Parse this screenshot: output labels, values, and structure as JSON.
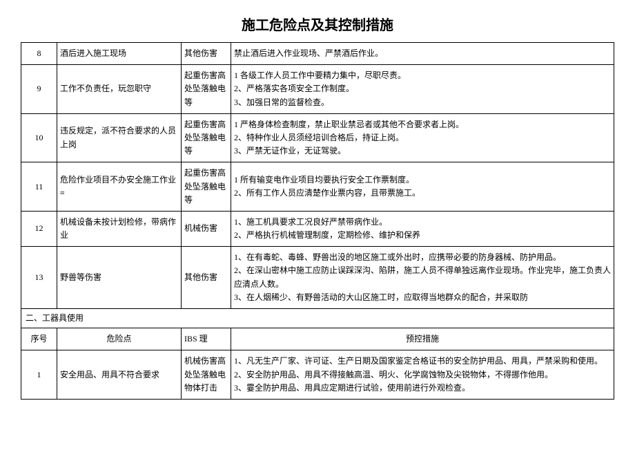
{
  "title": "施工危险点及其控制措施",
  "columns": {
    "seq": "序号",
    "risk": "危险点",
    "type": "IBS 理",
    "measure": "预控措施"
  },
  "section1": {
    "rows": [
      {
        "seq": "8",
        "risk": "酒后进入施工现场",
        "type": "其他伤害",
        "measure": "禁止酒后进入作业现场、严禁酒后作业。"
      },
      {
        "seq": "9",
        "risk": "工作不负责任，玩忽职守",
        "type": "起重伤害高处坠落触电等",
        "measure": "1 各级工作人员工作中要精力集中，尽职尽责。\n2、严格落实各项安全工作制度。\n3、加强日常的监督检查。"
      },
      {
        "seq": "10",
        "risk": "违反规定，派不符合要求的人员上岗",
        "type": "起重伤害高处坠落触电等",
        "measure": "1 严格身体检查制度，禁止职业禁忌者或其他不合要求者上岗。\n2、特种作业人员须经培训合格后，持证上岗。\n3、严禁无证作业，无证驾驶。"
      },
      {
        "seq": "11",
        "risk": "危险作业项目不办安全施工作业≡",
        "type": "起重伤害高处坠落触电等",
        "measure": "1 所有输变电作业项目均要执行安全工作票制度。\n2、所有工作人员应清楚作业票内容，且带票施工。"
      },
      {
        "seq": "12",
        "risk": "机械设备未按计划检修，带病作业",
        "type": "机械伤害",
        "measure": "1、施工机具要求工况良好严禁带病作业。\n2、严格执行机械管理制度，定期检修、维护和保养"
      },
      {
        "seq": "13",
        "risk": "野兽等伤害",
        "type": "其他伤害",
        "measure": "1、在有毒蛇、毒蜂、野兽出没的地区施工或外出时，应携带必要的防身器械、防护用品。\n2、在深山密林中施工应防止误踩深沟、陷阱，施工人员不得单独远离作业现场。作业完毕，施工负责人应清点人数。\n3、在人烟稀少、有野兽活动的大山区施工时，应取得当地群众的配合，并采取防"
      }
    ]
  },
  "section2": {
    "heading": "二、工器具使用",
    "rows": [
      {
        "seq": "1",
        "risk": "安全用品、用具不符合要求",
        "type": "机械伤害高处坠落触电物体打击",
        "measure": "1、凡无生产厂家、许可证、生产日期及国家鉴定合格证书的安全防护用品、用具，严禁采购和使用。\n2、安全防护用品、用具不得接触高温、明火、化学腐蚀物及尖锐物体，不得挪作他用。\n3、霎全防护用品、用具应定期进行试验，使用前进行外观检查。"
      }
    ]
  }
}
